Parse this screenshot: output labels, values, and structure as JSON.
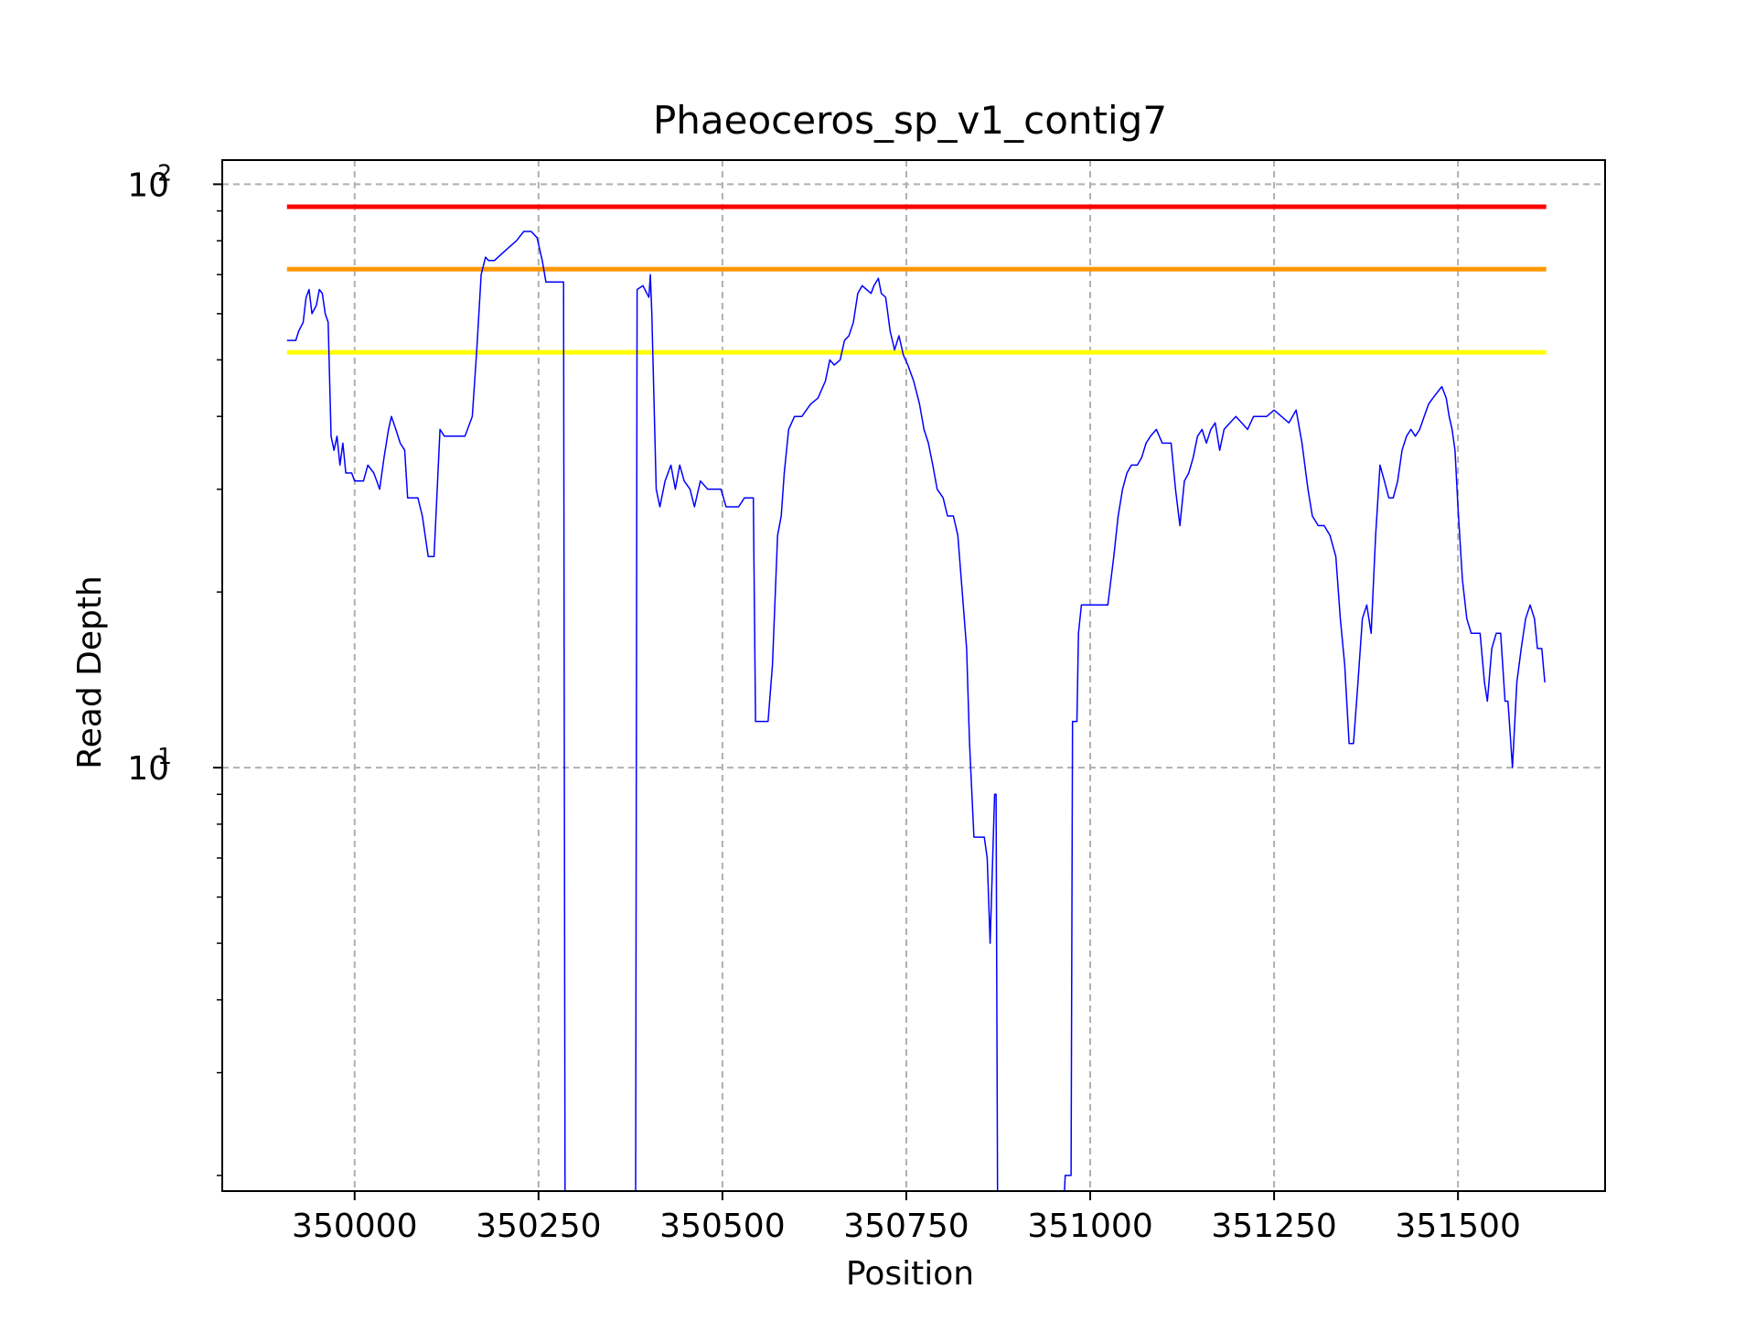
{
  "chart_data": {
    "type": "line",
    "title": "Phaeoceros_sp_v1_contig7",
    "xlabel": "Position",
    "ylabel": "Read Depth",
    "yscale": "log",
    "xlim": [
      349820,
      351700
    ],
    "ylim": [
      1.88,
      110
    ],
    "grid": true,
    "x_ticks": [
      {
        "value": 350000,
        "label": "350000"
      },
      {
        "value": 350250,
        "label": "350250"
      },
      {
        "value": 350500,
        "label": "350500"
      },
      {
        "value": 350750,
        "label": "350750"
      },
      {
        "value": 351000,
        "label": "351000"
      },
      {
        "value": 351250,
        "label": "351250"
      },
      {
        "value": 351500,
        "label": "351500"
      }
    ],
    "y_ticks": [
      {
        "value": 10,
        "base": "10",
        "exp": "1"
      },
      {
        "value": 100,
        "base": "10",
        "exp": "2"
      }
    ],
    "reference_lines": [
      {
        "y": 91.5,
        "x_range": [
          349908,
          351620
        ],
        "color": "#ff0000"
      },
      {
        "y": 71.5,
        "x_range": [
          349908,
          351620
        ],
        "color": "#ff9900"
      },
      {
        "y": 51.5,
        "x_range": [
          349908,
          351620
        ],
        "color": "#ffff00"
      }
    ],
    "series": [
      {
        "color": "#0000ff",
        "points": [
          [
            349908,
            54
          ],
          [
            349920,
            54
          ],
          [
            349924,
            56
          ],
          [
            349930,
            58
          ],
          [
            349934,
            64
          ],
          [
            349938,
            66
          ],
          [
            349942,
            60
          ],
          [
            349948,
            62
          ],
          [
            349952,
            66
          ],
          [
            349956,
            65
          ],
          [
            349960,
            60
          ],
          [
            349964,
            58
          ],
          [
            349968,
            37
          ],
          [
            349972,
            35
          ],
          [
            349976,
            37
          ],
          [
            349980,
            33
          ],
          [
            349984,
            36
          ],
          [
            349988,
            32
          ],
          [
            349996,
            32
          ],
          [
            350000,
            31
          ],
          [
            350012,
            31
          ],
          [
            350018,
            33
          ],
          [
            350026,
            32
          ],
          [
            350030,
            31
          ],
          [
            350034,
            30
          ],
          [
            350040,
            34
          ],
          [
            350046,
            38
          ],
          [
            350050,
            40
          ],
          [
            350056,
            38
          ],
          [
            350062,
            36
          ],
          [
            350068,
            35
          ],
          [
            350072,
            29
          ],
          [
            350086,
            29
          ],
          [
            350092,
            27
          ],
          [
            350100,
            23
          ],
          [
            350108,
            23
          ],
          [
            350116,
            38
          ],
          [
            350122,
            37
          ],
          [
            350140,
            37
          ],
          [
            350150,
            37
          ],
          [
            350160,
            40
          ],
          [
            350166,
            52
          ],
          [
            350172,
            70
          ],
          [
            350178,
            75
          ],
          [
            350182,
            74
          ],
          [
            350190,
            74
          ],
          [
            350200,
            76
          ],
          [
            350210,
            78
          ],
          [
            350220,
            80
          ],
          [
            350230,
            83
          ],
          [
            350240,
            83
          ],
          [
            350248,
            81
          ],
          [
            350255,
            74
          ],
          [
            350260,
            68
          ],
          [
            350268,
            68
          ],
          [
            350278,
            68
          ],
          [
            350284,
            68
          ],
          [
            350286,
            1.88
          ],
          [
            350382,
            1.88
          ],
          [
            350384,
            66
          ],
          [
            350392,
            67
          ],
          [
            350400,
            64
          ],
          [
            350402,
            70
          ],
          [
            350404,
            60
          ],
          [
            350410,
            30
          ],
          [
            350415,
            28
          ],
          [
            350422,
            31
          ],
          [
            350430,
            33
          ],
          [
            350436,
            30
          ],
          [
            350442,
            33
          ],
          [
            350448,
            31
          ],
          [
            350456,
            30
          ],
          [
            350462,
            28
          ],
          [
            350470,
            31
          ],
          [
            350480,
            30
          ],
          [
            350490,
            30
          ],
          [
            350498,
            30
          ],
          [
            350505,
            28
          ],
          [
            350512,
            28
          ],
          [
            350522,
            28
          ],
          [
            350530,
            29
          ],
          [
            350542,
            29
          ],
          [
            350545,
            12
          ],
          [
            350550,
            12
          ],
          [
            350555,
            12
          ],
          [
            350562,
            12
          ],
          [
            350568,
            15
          ],
          [
            350575,
            25
          ],
          [
            350580,
            27
          ],
          [
            350584,
            32
          ],
          [
            350590,
            38
          ],
          [
            350598,
            40
          ],
          [
            350608,
            40
          ],
          [
            350614,
            41
          ],
          [
            350620,
            42
          ],
          [
            350630,
            43
          ],
          [
            350640,
            46
          ],
          [
            350646,
            50
          ],
          [
            350652,
            49
          ],
          [
            350660,
            50
          ],
          [
            350666,
            54
          ],
          [
            350672,
            55
          ],
          [
            350678,
            58
          ],
          [
            350684,
            65
          ],
          [
            350690,
            67
          ],
          [
            350696,
            66
          ],
          [
            350702,
            65
          ],
          [
            350706,
            67
          ],
          [
            350712,
            69
          ],
          [
            350716,
            65
          ],
          [
            350722,
            64
          ],
          [
            350728,
            56
          ],
          [
            350734,
            52
          ],
          [
            350740,
            55
          ],
          [
            350746,
            51
          ],
          [
            350752,
            49
          ],
          [
            350760,
            46
          ],
          [
            350768,
            42
          ],
          [
            350774,
            38
          ],
          [
            350780,
            36
          ],
          [
            350786,
            33
          ],
          [
            350792,
            30
          ],
          [
            350800,
            29
          ],
          [
            350806,
            27
          ],
          [
            350814,
            27
          ],
          [
            350820,
            25
          ],
          [
            350826,
            20
          ],
          [
            350832,
            16
          ],
          [
            350836,
            11
          ],
          [
            350842,
            7.6
          ],
          [
            350850,
            7.6
          ],
          [
            350856,
            7.6
          ],
          [
            350860,
            7.0
          ],
          [
            350864,
            5.0
          ],
          [
            350870,
            9.0
          ],
          [
            350872,
            9.0
          ],
          [
            350874,
            1.88
          ],
          [
            350965,
            1.88
          ],
          [
            350966,
            2.0
          ],
          [
            350974,
            2.0
          ],
          [
            350976,
            12
          ],
          [
            350982,
            12
          ],
          [
            350984,
            17
          ],
          [
            350988,
            19
          ],
          [
            351000,
            19
          ],
          [
            351010,
            19
          ],
          [
            351024,
            19
          ],
          [
            351032,
            23
          ],
          [
            351038,
            27
          ],
          [
            351044,
            30
          ],
          [
            351050,
            32
          ],
          [
            351056,
            33
          ],
          [
            351064,
            33
          ],
          [
            351070,
            34
          ],
          [
            351076,
            36
          ],
          [
            351082,
            37
          ],
          [
            351090,
            38
          ],
          [
            351098,
            36
          ],
          [
            351104,
            36
          ],
          [
            351110,
            36
          ],
          [
            351116,
            30
          ],
          [
            351122,
            26
          ],
          [
            351128,
            31
          ],
          [
            351134,
            32
          ],
          [
            351140,
            34
          ],
          [
            351146,
            37
          ],
          [
            351152,
            38
          ],
          [
            351158,
            36
          ],
          [
            351164,
            38
          ],
          [
            351170,
            39
          ],
          [
            351176,
            35
          ],
          [
            351182,
            38
          ],
          [
            351190,
            39
          ],
          [
            351198,
            40
          ],
          [
            351206,
            39
          ],
          [
            351214,
            38
          ],
          [
            351222,
            40
          ],
          [
            351230,
            40
          ],
          [
            351240,
            40
          ],
          [
            351250,
            41
          ],
          [
            351260,
            40
          ],
          [
            351270,
            39
          ],
          [
            351280,
            41
          ],
          [
            351288,
            36
          ],
          [
            351296,
            30
          ],
          [
            351302,
            27
          ],
          [
            351310,
            26
          ],
          [
            351318,
            26
          ],
          [
            351326,
            25
          ],
          [
            351334,
            23
          ],
          [
            351340,
            18
          ],
          [
            351346,
            15
          ],
          [
            351352,
            11
          ],
          [
            351358,
            11
          ],
          [
            351364,
            14
          ],
          [
            351370,
            18
          ],
          [
            351376,
            19
          ],
          [
            351382,
            17
          ],
          [
            351388,
            25
          ],
          [
            351394,
            33
          ],
          [
            351400,
            31
          ],
          [
            351406,
            29
          ],
          [
            351412,
            29
          ],
          [
            351418,
            31
          ],
          [
            351424,
            35
          ],
          [
            351430,
            37
          ],
          [
            351436,
            38
          ],
          [
            351442,
            37
          ],
          [
            351448,
            38
          ],
          [
            351454,
            40
          ],
          [
            351460,
            42
          ],
          [
            351466,
            43
          ],
          [
            351472,
            44
          ],
          [
            351478,
            45
          ],
          [
            351484,
            43
          ],
          [
            351488,
            40
          ],
          [
            351492,
            38
          ],
          [
            351496,
            35
          ],
          [
            351500,
            28
          ],
          [
            351506,
            21
          ],
          [
            351512,
            18
          ],
          [
            351518,
            17
          ],
          [
            351524,
            17
          ],
          [
            351530,
            17
          ],
          [
            351536,
            14
          ],
          [
            351540,
            13
          ],
          [
            351546,
            16
          ],
          [
            351552,
            17
          ],
          [
            351558,
            17
          ],
          [
            351564,
            13
          ],
          [
            351568,
            13
          ],
          [
            351574,
            10
          ],
          [
            351580,
            14
          ],
          [
            351586,
            16
          ],
          [
            351592,
            18
          ],
          [
            351598,
            19
          ],
          [
            351604,
            18
          ],
          [
            351608,
            16
          ],
          [
            351614,
            16
          ],
          [
            351618,
            14
          ]
        ]
      }
    ]
  },
  "colors": {
    "series": "#0000ff",
    "grid": "#b0b0b0",
    "axes": "#000000"
  }
}
